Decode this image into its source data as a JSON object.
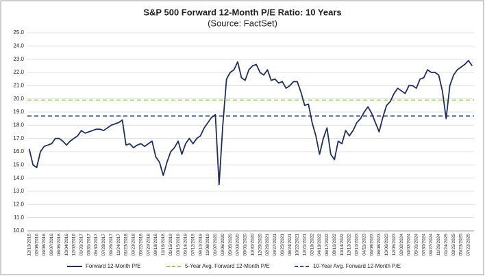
{
  "chart_data": {
    "type": "line",
    "title": "S&P 500 Forward 12-Month P/E Ratio: 10 Years",
    "subtitle": "(Source: FactSet)",
    "categories": [
      "12/10/2015",
      null,
      "02/08/2016",
      null,
      "04/08/2016",
      null,
      "06/07/2016",
      null,
      "08/05/2016",
      null,
      "10/04/2016",
      null,
      "12/02/2016",
      null,
      "01/31/2017",
      null,
      "03/31/2017",
      null,
      "05/30/2017",
      null,
      "07/28/2017",
      null,
      "09/26/2017",
      null,
      "11/24/2017",
      null,
      "01/23/2018",
      null,
      "03/23/2018",
      null,
      "05/22/2018",
      null,
      "07/20/2018",
      null,
      "09/18/2018",
      null,
      "11/16/2018",
      null,
      "01/15/2019",
      null,
      "03/15/2019",
      null,
      "05/14/2019",
      null,
      "07/12/2019",
      null,
      "09/10/2019",
      null,
      "11/08/2019",
      null,
      "01/07/2020",
      null,
      "03/06/2020",
      null,
      "05/05/2020",
      null,
      "07/03/2020",
      null,
      "09/01/2020",
      null,
      "10/30/2020",
      null,
      "12/29/2020",
      null,
      "02/26/2021",
      null,
      "04/27/2021",
      null,
      "06/25/2021",
      null,
      "08/24/2021",
      null,
      "10/22/2021",
      null,
      "12/21/2021",
      null,
      "02/18/2022",
      null,
      "04/19/2022",
      null,
      "06/17/2022",
      null,
      "08/16/2022",
      null,
      "10/14/2022",
      null,
      "12/13/2022",
      null,
      "02/10/2023",
      null,
      "04/11/2023",
      null,
      "06/09/2023",
      null,
      "08/08/2023",
      null,
      "10/06/2023",
      null,
      "12/05/2023",
      null,
      "02/02/2024",
      null,
      "04/02/2024",
      null,
      "05/31/2024",
      null,
      "07/30/2024",
      null,
      "09/27/2024",
      null,
      "11/26/2024",
      null,
      "01/24/2025",
      null,
      "03/25/2025",
      null,
      "05/23/2025",
      null,
      "07/22/2025",
      null
    ],
    "series": [
      {
        "name": "Forward 12-Month P/E",
        "color": "#1f2d5c",
        "values": [
          16.2,
          15.0,
          14.8,
          16.0,
          16.4,
          16.5,
          16.6,
          17.0,
          17.0,
          16.8,
          16.5,
          16.8,
          17.0,
          17.2,
          17.6,
          17.4,
          17.5,
          17.6,
          17.7,
          17.7,
          17.6,
          17.8,
          18.0,
          18.1,
          18.2,
          18.4,
          16.5,
          16.6,
          16.3,
          16.5,
          16.6,
          16.4,
          16.6,
          16.8,
          15.6,
          15.2,
          14.2,
          15.2,
          16.0,
          16.3,
          16.8,
          15.8,
          16.6,
          17.0,
          16.6,
          17.0,
          17.2,
          17.8,
          18.2,
          18.6,
          18.8,
          13.5,
          18.0,
          21.5,
          22.0,
          22.2,
          22.8,
          21.6,
          21.4,
          22.2,
          22.5,
          22.6,
          22.0,
          21.8,
          22.2,
          21.4,
          21.5,
          21.2,
          21.3,
          20.8,
          21.0,
          21.3,
          21.3,
          20.5,
          19.5,
          19.6,
          18.2,
          17.2,
          15.8,
          17.0,
          17.8,
          15.8,
          15.4,
          16.8,
          16.6,
          17.6,
          17.2,
          17.6,
          18.2,
          18.5,
          19.0,
          19.4,
          18.9,
          18.2,
          17.5,
          18.6,
          19.5,
          19.8,
          20.4,
          20.8,
          20.6,
          20.4,
          21.0,
          21.0,
          20.8,
          21.5,
          21.6,
          22.2,
          22.0,
          22.0,
          21.8,
          20.6,
          18.5,
          21.0,
          21.8,
          22.2,
          22.4,
          22.6,
          22.9,
          22.5
        ]
      }
    ],
    "reference_lines": [
      {
        "name": "5-Year Avg. Forward 12-Month P/E",
        "color": "#92d050",
        "value": 19.9
      },
      {
        "name": "10-Year Avg. Forward 12-Month P/E",
        "color": "#2f4f8f",
        "value": 18.7
      }
    ],
    "ylim": [
      10,
      25
    ],
    "yticks": [
      {
        "value": 10,
        "label": "10.0"
      },
      {
        "value": 11,
        "label": "11.0"
      },
      {
        "value": 12,
        "label": "12.0"
      },
      {
        "value": 13,
        "label": "13.0"
      },
      {
        "value": 14,
        "label": "14.0"
      },
      {
        "value": 15,
        "label": "15.0"
      },
      {
        "value": 16,
        "label": "16.0"
      },
      {
        "value": 17,
        "label": "17.0"
      },
      {
        "value": 18,
        "label": "18.0"
      },
      {
        "value": 19,
        "label": "19.0"
      },
      {
        "value": 20,
        "label": "20.0"
      },
      {
        "value": 21,
        "label": "21.0"
      },
      {
        "value": 22,
        "label": "22.0"
      },
      {
        "value": 23,
        "label": "23.0"
      },
      {
        "value": 24,
        "label": "24.0"
      },
      {
        "value": 25,
        "label": "25.0"
      }
    ],
    "grid": true,
    "legend": "bottom"
  }
}
